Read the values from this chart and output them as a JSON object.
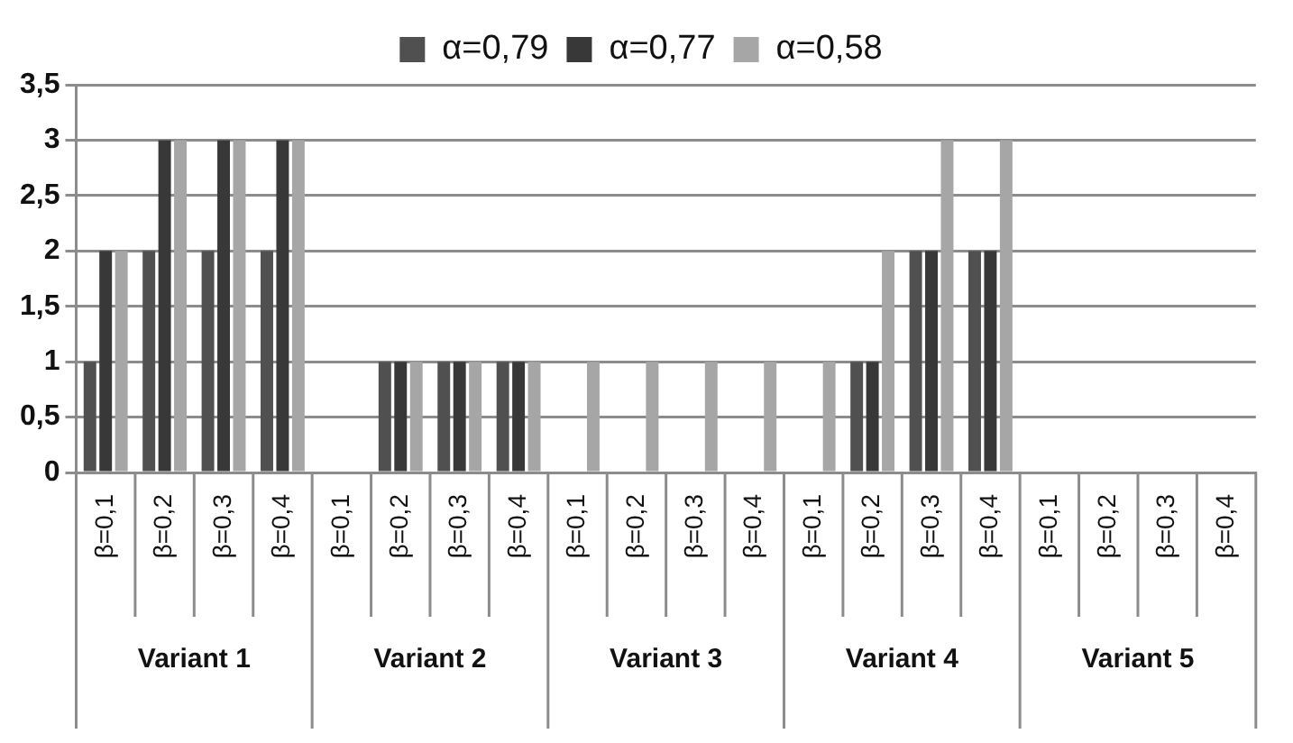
{
  "chart_data": {
    "type": "bar",
    "categories": [
      "β=0,1",
      "β=0,2",
      "β=0,3",
      "β=0,4",
      "β=0,1",
      "β=0,2",
      "β=0,3",
      "β=0,4",
      "β=0,1",
      "β=0,2",
      "β=0,3",
      "β=0,4",
      "β=0,1",
      "β=0,2",
      "β=0,3",
      "β=0,4",
      "β=0,1",
      "β=0,2",
      "β=0,3",
      "β=0,4"
    ],
    "series": [
      {
        "name": "α=0,79",
        "color": "#505050",
        "values": [
          1,
          2,
          2,
          2,
          0,
          1,
          1,
          1,
          0,
          0,
          0,
          0,
          0,
          1,
          2,
          2,
          0,
          0,
          0,
          0
        ]
      },
      {
        "name": "α=0,77",
        "color": "#383838",
        "values": [
          2,
          3,
          3,
          3,
          0,
          1,
          1,
          1,
          0,
          0,
          0,
          0,
          0,
          1,
          2,
          2,
          0,
          0,
          0,
          0
        ]
      },
      {
        "name": "α=0,58",
        "color": "#a6a6a6",
        "values": [
          2,
          3,
          3,
          3,
          0,
          1,
          1,
          1,
          1,
          1,
          1,
          1,
          1,
          2,
          3,
          3,
          0,
          0,
          0,
          0
        ]
      }
    ],
    "annotations": [
      "Variant 1",
      "Variant 2",
      "Variant 3",
      "Variant 4",
      "Variant 5"
    ],
    "ylim": [
      0,
      3.5
    ],
    "yticks": [
      0,
      {
        "value": 0.5,
        "label": "0,5"
      },
      1,
      {
        "value": 1.5,
        "label": "1,5"
      },
      2,
      {
        "value": 2.5,
        "label": "2,5"
      },
      3,
      {
        "value": 3.5,
        "label": "3,5"
      }
    ],
    "grid": "y",
    "legend": "top"
  }
}
